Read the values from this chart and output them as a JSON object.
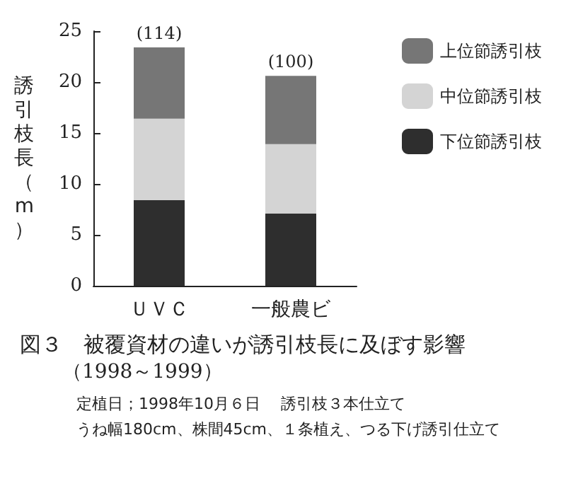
{
  "chart_data": {
    "type": "bar",
    "stacked": true,
    "title": "図３　被覆資材の違いが誘引枝長に及ぼす影響",
    "subtitle": "（1998～1999）",
    "ylabel": "誘引枝長（m）",
    "categories": [
      "ＵＶＣ",
      "一般農ビ"
    ],
    "series": [
      {
        "name": "下位節誘引枝",
        "color": "#2e2e2e",
        "values": [
          8.4,
          7.1
        ]
      },
      {
        "name": "中位節誘引枝",
        "color": "#d4d4d4",
        "values": [
          8.0,
          6.8
        ]
      },
      {
        "name": "上位節誘引枝",
        "color": "#767676",
        "values": [
          7.0,
          6.7
        ]
      }
    ],
    "ylim": [
      0,
      25
    ],
    "yticks": [
      0,
      5,
      10,
      15,
      20,
      25
    ],
    "grid": false,
    "legend": "top right",
    "annotations": [
      {
        "text": "(114)",
        "x": "ＵＶＣ",
        "y": 23.4
      },
      {
        "text": "(100)",
        "x": "一般農ビ",
        "y": 20.6
      },
      "定植日；1998年10月６日　 誘引枝３本仕立て",
      "うね幅180cm、株間45cm、１条植え、つる下げ誘引仕立て"
    ]
  }
}
